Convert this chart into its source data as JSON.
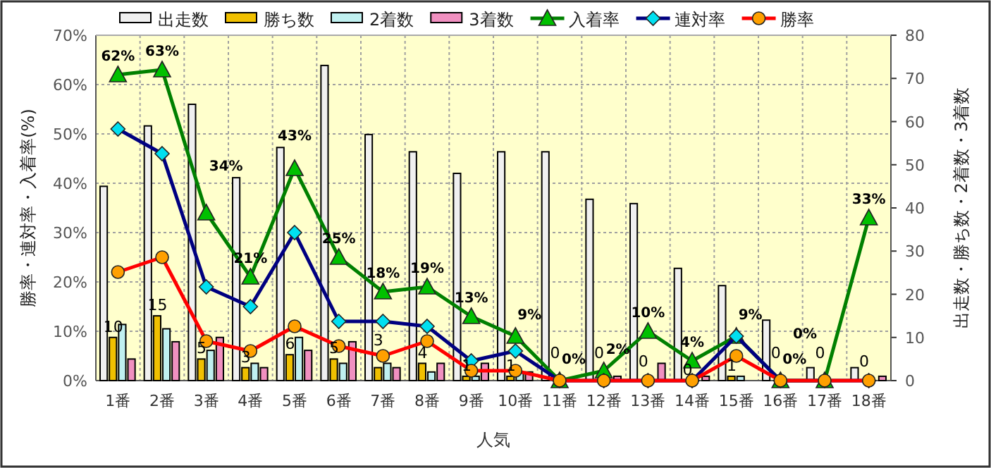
{
  "chart_data": {
    "type": "bar",
    "xlabel": "人気",
    "ylabel": "勝率・連対率・入着率(%)",
    "y2label": "出走数・勝ち数・2着数・3着数",
    "categories": [
      "1番",
      "2番",
      "3番",
      "4番",
      "5番",
      "6番",
      "7番",
      "8番",
      "9番",
      "10番",
      "11番",
      "12番",
      "13番",
      "14番",
      "15番",
      "16番",
      "17番",
      "18番"
    ],
    "series": [
      {
        "name": "出走数",
        "type": "bar",
        "axis": "y2",
        "color": "#f0f0f0",
        "values": [
          45,
          59,
          64,
          47,
          54,
          73,
          57,
          53,
          48,
          53,
          53,
          42,
          41,
          26,
          22,
          14,
          3,
          3
        ]
      },
      {
        "name": "勝ち数",
        "type": "bar",
        "axis": "y2",
        "color": "#f0c000",
        "values": [
          10,
          15,
          5,
          3,
          6,
          5,
          3,
          4,
          1,
          1,
          0,
          0,
          0,
          0,
          1,
          0,
          0,
          0
        ],
        "value_labels": [
          "10",
          "15",
          "5",
          "3",
          "6",
          "5",
          "3",
          "4",
          "1",
          "1",
          "0",
          "0",
          "0",
          "0",
          "1",
          "0",
          "0",
          "0"
        ]
      },
      {
        "name": "2着数",
        "type": "bar",
        "axis": "y2",
        "color": "#c0f0f0",
        "values": [
          13,
          12,
          7,
          4,
          10,
          4,
          4,
          2,
          1,
          2,
          0,
          0,
          0,
          0,
          1,
          0,
          0,
          0
        ]
      },
      {
        "name": "3着数",
        "type": "bar",
        "axis": "y2",
        "color": "#f090c0",
        "values": [
          5,
          9,
          10,
          3,
          7,
          9,
          3,
          4,
          4,
          2,
          0,
          1,
          4,
          1,
          0,
          0,
          0,
          1
        ]
      },
      {
        "name": "入着率",
        "type": "line",
        "axis": "y",
        "color": "#008000",
        "marker": "triangle",
        "values": [
          62,
          63,
          34,
          21,
          43,
          25,
          18,
          19,
          13,
          9,
          0,
          2,
          10,
          4,
          9,
          0,
          0,
          33
        ],
        "value_labels": [
          "62%",
          "63%",
          "34%",
          "21%",
          "43%",
          "25%",
          "18%",
          "19%",
          "13%",
          "9%",
          "0%",
          "2%",
          "10%",
          "4%",
          "9%",
          "0%",
          "0%",
          "33%"
        ]
      },
      {
        "name": "連対率",
        "type": "line",
        "axis": "y",
        "color": "#000080",
        "marker": "diamond",
        "values": [
          51,
          46,
          19,
          15,
          30,
          12,
          12,
          11,
          4,
          6,
          0,
          0,
          0,
          0,
          9,
          0,
          0,
          0
        ]
      },
      {
        "name": "勝率",
        "type": "line",
        "axis": "y",
        "color": "#ff0000",
        "marker": "circle",
        "values": [
          22,
          25,
          8,
          6,
          11,
          7,
          5,
          8,
          2,
          2,
          0,
          0,
          0,
          0,
          5,
          0,
          0,
          0
        ]
      }
    ],
    "ylim": [
      0,
      70
    ],
    "yticks": [
      {
        "value": 0,
        "label": "0%"
      },
      {
        "value": 10,
        "label": "10%"
      },
      {
        "value": 20,
        "label": "20%"
      },
      {
        "value": 30,
        "label": "30%"
      },
      {
        "value": 40,
        "label": "40%"
      },
      {
        "value": 50,
        "label": "50%"
      },
      {
        "value": 60,
        "label": "60%"
      },
      {
        "value": 70,
        "label": "70%"
      }
    ],
    "y2lim": [
      0,
      80
    ],
    "y2ticks": [
      0,
      10,
      20,
      30,
      40,
      50,
      60,
      70,
      80
    ],
    "grid": true,
    "legend": "top"
  }
}
